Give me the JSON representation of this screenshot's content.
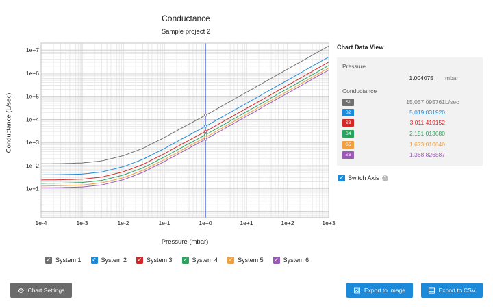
{
  "header": {
    "title": "Conductance",
    "subtitle": "Sample project 2"
  },
  "chart_data": {
    "type": "line",
    "title": "Conductance",
    "subtitle": "Sample project 2",
    "xlabel": "Pressure (mbar)",
    "ylabel": "Conductance (L/sec)",
    "xscale": "log",
    "yscale": "log",
    "xlim": [
      0.0001,
      1000
    ],
    "ylim": [
      0.56,
      20000000
    ],
    "x_ticks": [
      "1e-4",
      "1e-3",
      "1e-2",
      "1e-1",
      "1e+0",
      "1e+1",
      "1e+2",
      "1e+3"
    ],
    "y_ticks": [
      "1e+1",
      "1e+2",
      "1e+3",
      "1e+4",
      "1e+5",
      "1e+6",
      "1e+7"
    ],
    "grid": true,
    "cursor_x": 1.004075,
    "x": [
      0.0001,
      0.0003,
      0.001,
      0.003,
      0.01,
      0.03,
      0.1,
      0.3,
      1,
      3,
      10,
      30,
      100,
      300,
      1000
    ],
    "series": [
      {
        "name": "System 1",
        "color": "#707070",
        "values": [
          120,
          122,
          130,
          160,
          270,
          560,
          1650,
          4800,
          15057,
          45000,
          150000,
          450000,
          1500000,
          4500000,
          15000000
        ]
      },
      {
        "name": "System 2",
        "color": "#1d8ad9",
        "values": [
          40,
          41,
          43,
          53,
          90,
          187,
          550,
          1600,
          5019,
          15000,
          50000,
          150000,
          500000,
          1500000,
          5000000
        ]
      },
      {
        "name": "System 3",
        "color": "#d62728",
        "values": [
          24,
          24.5,
          26,
          32,
          54,
          112,
          330,
          960,
          3011,
          9000,
          30000,
          90000,
          300000,
          900000,
          3000000
        ]
      },
      {
        "name": "System 4",
        "color": "#2ca25f",
        "values": [
          17,
          17.5,
          18.6,
          23,
          39,
          80,
          236,
          686,
          2151,
          6430,
          21500,
          64300,
          215000,
          643000,
          2150000
        ]
      },
      {
        "name": "System 5",
        "color": "#f0a040",
        "values": [
          13,
          13.6,
          14.5,
          18,
          30,
          62,
          183,
          533,
          1673,
          5000,
          16700,
          50000,
          167000,
          500000,
          1670000
        ]
      },
      {
        "name": "System 6",
        "color": "#9b59b6",
        "values": [
          11,
          11.2,
          11.9,
          14.6,
          24.6,
          51,
          150,
          437,
          1369,
          4100,
          13700,
          41000,
          137000,
          410000,
          1370000
        ]
      }
    ]
  },
  "legend": {
    "items": [
      {
        "label": "System 1",
        "color": "#707070"
      },
      {
        "label": "System 2",
        "color": "#1d8ad9"
      },
      {
        "label": "System 3",
        "color": "#d62728"
      },
      {
        "label": "System 4",
        "color": "#2ca25f"
      },
      {
        "label": "System 5",
        "color": "#f0a040"
      },
      {
        "label": "System 6",
        "color": "#9b59b6"
      }
    ]
  },
  "data_view": {
    "title": "Chart Data View",
    "pressure_label": "Pressure",
    "pressure_value": "1.004075",
    "pressure_unit": "mbar",
    "conductance_label": "Conductance",
    "conductance_unit": "L/sec",
    "rows": [
      {
        "badge": "S1",
        "value": "15,057.095761",
        "color": "#707070",
        "text_color": "#777777"
      },
      {
        "badge": "S2",
        "value": "5,019.031920",
        "color": "#1d8ad9",
        "text_color": "#1d8ad9"
      },
      {
        "badge": "S3",
        "value": "3,011.419152",
        "color": "#d62728",
        "text_color": "#d62728"
      },
      {
        "badge": "S4",
        "value": "2,151.013680",
        "color": "#2ca25f",
        "text_color": "#2ca25f"
      },
      {
        "badge": "S5",
        "value": "1,673.010640",
        "color": "#f0a040",
        "text_color": "#f0a040"
      },
      {
        "badge": "S6",
        "value": "1,368.826887",
        "color": "#9b59b6",
        "text_color": "#9b59b6"
      }
    ]
  },
  "switch_axis": {
    "label": "Switch Axis",
    "checked": true,
    "help_icon": "question-circle-icon"
  },
  "buttons": {
    "settings": {
      "label": "Chart Settings",
      "icon": "gear-icon"
    },
    "export_image": {
      "label": "Export to Image",
      "icon": "image-icon"
    },
    "export_csv": {
      "label": "Export to CSV",
      "icon": "table-icon"
    }
  }
}
